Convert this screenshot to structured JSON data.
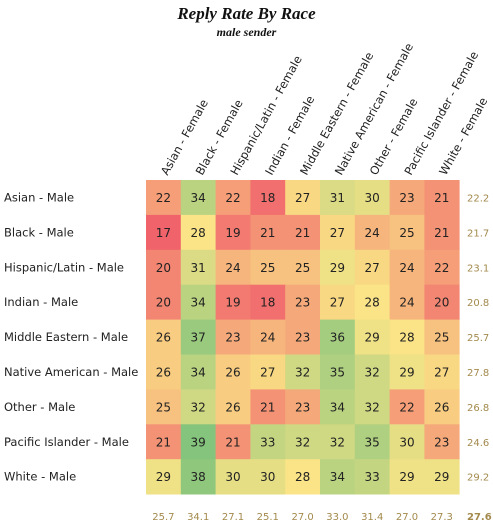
{
  "chart_data": {
    "type": "heatmap",
    "title": "Reply Rate By Race",
    "subtitle": "male sender",
    "columns": [
      "Asian - Female",
      "Black - Female",
      "Hispanic/Latin - Female",
      "Indian - Female",
      "Middle Eastern - Female",
      "Native American - Female",
      "Other - Female",
      "Pacific Islander - Female",
      "White - Female"
    ],
    "rows": [
      "Asian - Male",
      "Black - Male",
      "Hispanic/Latin - Male",
      "Indian - Male",
      "Middle Eastern - Male",
      "Native American - Male",
      "Other - Male",
      "Pacific Islander - Male",
      "White - Male"
    ],
    "values": [
      [
        22,
        34,
        22,
        18,
        27,
        31,
        30,
        23,
        21
      ],
      [
        17,
        28,
        19,
        21,
        21,
        27,
        24,
        25,
        21
      ],
      [
        20,
        31,
        24,
        25,
        25,
        29,
        27,
        24,
        22
      ],
      [
        20,
        34,
        19,
        18,
        23,
        27,
        28,
        24,
        20
      ],
      [
        26,
        37,
        23,
        24,
        23,
        36,
        29,
        28,
        25
      ],
      [
        26,
        34,
        26,
        27,
        32,
        35,
        32,
        29,
        27
      ],
      [
        25,
        32,
        26,
        21,
        23,
        34,
        32,
        22,
        26
      ],
      [
        21,
        39,
        21,
        33,
        32,
        32,
        35,
        30,
        23
      ],
      [
        29,
        38,
        30,
        30,
        28,
        34,
        33,
        29,
        29
      ]
    ],
    "row_averages": [
      "22.2",
      "21.7",
      "23.1",
      "20.8",
      "25.7",
      "27.8",
      "26.8",
      "24.6",
      "29.2"
    ],
    "column_averages": [
      "25.7",
      "34.1",
      "27.1",
      "25.1",
      "27.0",
      "33.0",
      "31.4",
      "27.0",
      "27.3"
    ],
    "overall_average": "27.6",
    "color_scale": {
      "low": "#f0636b",
      "mid": "#fae487",
      "high": "#84c47c"
    },
    "average_text_color": "#a38a4c"
  }
}
